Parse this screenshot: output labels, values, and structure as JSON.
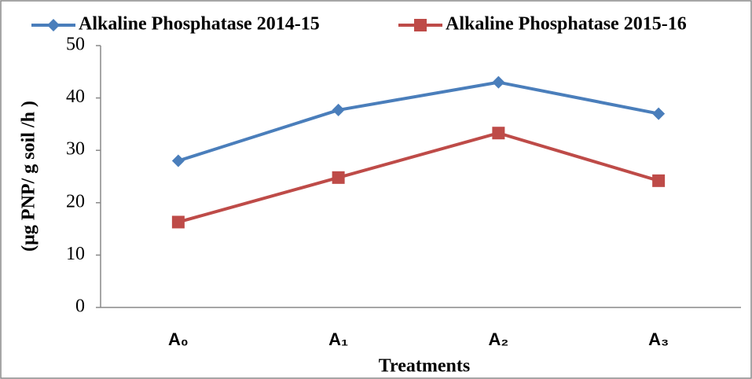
{
  "chart_data": {
    "type": "line",
    "x_label": "Treatments",
    "y_label": "(µg PNP/ g soil /h )",
    "categories": [
      "A₀",
      "A₁",
      "A₂",
      "A₃"
    ],
    "series": [
      {
        "name": "Alkaline Phosphatase  2014-15",
        "color": "#4a7ebb",
        "marker": "diamond",
        "values": [
          28,
          37.7,
          43,
          37
        ]
      },
      {
        "name": "Alkaline Phosphatase  2015-16",
        "color": "#be4b48",
        "marker": "square",
        "values": [
          16.3,
          24.8,
          33.3,
          24.2
        ]
      }
    ],
    "ylim": [
      0,
      50
    ],
    "yticks": [
      0,
      10,
      20,
      30,
      40,
      50
    ],
    "grid": false,
    "legend": "top"
  }
}
